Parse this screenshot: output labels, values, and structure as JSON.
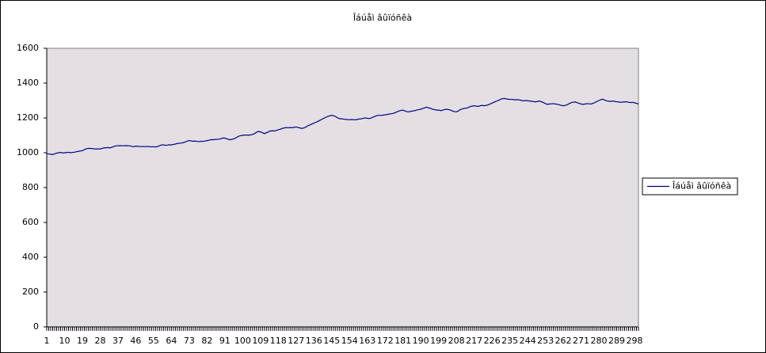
{
  "chart_data": {
    "type": "line",
    "title": "Îáúåì âûïóñêà",
    "categories": [
      1,
      null,
      null,
      null,
      null,
      null,
      null,
      null,
      null,
      10,
      null,
      null,
      null,
      null,
      null,
      null,
      null,
      null,
      19,
      null,
      null,
      null,
      null,
      null,
      null,
      null,
      null,
      28,
      null,
      null,
      null,
      null,
      null,
      null,
      null,
      null,
      37,
      null,
      null,
      null,
      null,
      null,
      null,
      null,
      null,
      46,
      null,
      null,
      null,
      null,
      null,
      null,
      null,
      null,
      55,
      null,
      null,
      null,
      null,
      null,
      null,
      null,
      null,
      64,
      null,
      null,
      null,
      null,
      null,
      null,
      null,
      null,
      73,
      null,
      null,
      null,
      null,
      null,
      null,
      null,
      null,
      82,
      null,
      null,
      null,
      null,
      null,
      null,
      null,
      null,
      91,
      null,
      null,
      null,
      null,
      null,
      null,
      null,
      null,
      100,
      null,
      null,
      null,
      null,
      null,
      null,
      null,
      null,
      109,
      null,
      null,
      null,
      null,
      null,
      null,
      null,
      null,
      118,
      null,
      null,
      null,
      null,
      null,
      null,
      null,
      null,
      127,
      null,
      null,
      null,
      null,
      null,
      null,
      null,
      null,
      136,
      null,
      null,
      null,
      null,
      null,
      null,
      null,
      null,
      145,
      null,
      null,
      null,
      null,
      null,
      null,
      null,
      null,
      154,
      null,
      null,
      null,
      null,
      null,
      null,
      null,
      null,
      163,
      null,
      null,
      null,
      null,
      null,
      null,
      null,
      null,
      172,
      null,
      null,
      null,
      null,
      null,
      null,
      null,
      null,
      181,
      null,
      null,
      null,
      null,
      null,
      null,
      null,
      null,
      190,
      null,
      null,
      null,
      null,
      null,
      null,
      null,
      null,
      199,
      null,
      null,
      null,
      null,
      null,
      null,
      null,
      null,
      208,
      null,
      null,
      null,
      null,
      null,
      null,
      null,
      null,
      217,
      null,
      null,
      null,
      null,
      null,
      null,
      null,
      null,
      226,
      null,
      null,
      null,
      null,
      null,
      null,
      null,
      null,
      235,
      null,
      null,
      null,
      null,
      null,
      null,
      null,
      null,
      244,
      null,
      null,
      null,
      null,
      null,
      null,
      null,
      null,
      253,
      null,
      null,
      null,
      null,
      null,
      null,
      null,
      null,
      262,
      null,
      null,
      null,
      null,
      null,
      null,
      null,
      null,
      271,
      null,
      null,
      null,
      null,
      null,
      null,
      null,
      null,
      280,
      null,
      null,
      null,
      null,
      null,
      null,
      null,
      null,
      289,
      null,
      null,
      null,
      null,
      null,
      null,
      null,
      null,
      298,
      null,
      null
    ],
    "series": [
      {
        "name": "Îáúåì âûïóñêà",
        "color": "#000080",
        "values": [
          995,
          993,
          992,
          990,
          994,
          998,
          1000,
          1002,
          999,
          1000,
          1001,
          1003,
          1000,
          1002,
          1003,
          1006,
          1008,
          1010,
          1012,
          1018,
          1023,
          1025,
          1025,
          1024,
          1022,
          1021,
          1022,
          1022,
          1025,
          1028,
          1029,
          1030,
          1028,
          1032,
          1036,
          1040,
          1040,
          1041,
          1040,
          1040,
          1041,
          1040,
          1040,
          1036,
          1035,
          1038,
          1037,
          1036,
          1035,
          1036,
          1035,
          1036,
          1035,
          1034,
          1035,
          1033,
          1036,
          1040,
          1045,
          1045,
          1043,
          1044,
          1046,
          1045,
          1048,
          1050,
          1053,
          1055,
          1056,
          1058,
          1062,
          1067,
          1070,
          1068,
          1066,
          1067,
          1065,
          1064,
          1066,
          1065,
          1068,
          1070,
          1072,
          1075,
          1075,
          1076,
          1077,
          1078,
          1080,
          1085,
          1084,
          1080,
          1076,
          1075,
          1078,
          1082,
          1088,
          1095,
          1098,
          1100,
          1101,
          1102,
          1100,
          1103,
          1105,
          1110,
          1118,
          1122,
          1120,
          1115,
          1110,
          1115,
          1120,
          1125,
          1126,
          1125,
          1128,
          1132,
          1135,
          1140,
          1142,
          1145,
          1143,
          1145,
          1144,
          1146,
          1148,
          1145,
          1142,
          1140,
          1143,
          1148,
          1155,
          1160,
          1165,
          1170,
          1175,
          1180,
          1186,
          1192,
          1198,
          1204,
          1208,
          1212,
          1215,
          1212,
          1208,
          1200,
          1196,
          1195,
          1193,
          1192,
          1190,
          1190,
          1191,
          1190,
          1189,
          1192,
          1194,
          1195,
          1198,
          1200,
          1198,
          1196,
          1200,
          1205,
          1210,
          1214,
          1215,
          1215,
          1216,
          1218,
          1220,
          1222,
          1224,
          1226,
          1230,
          1235,
          1240,
          1243,
          1245,
          1240,
          1236,
          1235,
          1238,
          1240,
          1242,
          1245,
          1248,
          1250,
          1255,
          1258,
          1262,
          1258,
          1255,
          1250,
          1248,
          1245,
          1245,
          1242,
          1244,
          1248,
          1250,
          1248,
          1245,
          1240,
          1236,
          1235,
          1240,
          1248,
          1252,
          1255,
          1256,
          1260,
          1265,
          1268,
          1270,
          1268,
          1266,
          1270,
          1272,
          1270,
          1272,
          1275,
          1280,
          1285,
          1290,
          1295,
          1300,
          1305,
          1310,
          1312,
          1310,
          1308,
          1306,
          1307,
          1305,
          1304,
          1305,
          1303,
          1300,
          1298,
          1300,
          1299,
          1297,
          1296,
          1294,
          1292,
          1295,
          1297,
          1293,
          1288,
          1282,
          1278,
          1280,
          1281,
          1282,
          1280,
          1278,
          1276,
          1272,
          1270,
          1272,
          1276,
          1282,
          1288,
          1290,
          1292,
          1288,
          1284,
          1280,
          1278,
          1280,
          1282,
          1281,
          1280,
          1284,
          1288,
          1295,
          1300,
          1305,
          1308,
          1302,
          1298,
          1296,
          1295,
          1297,
          1295,
          1293,
          1292,
          1290,
          1291,
          1292,
          1293,
          1290,
          1288,
          1290,
          1287,
          1284,
          1280
        ]
      }
    ],
    "ylim": [
      0,
      1600
    ],
    "yticks": [
      0,
      200,
      400,
      600,
      800,
      1000,
      1200,
      1400,
      1600
    ],
    "grid": false,
    "legend": "right",
    "plot_background": "#e3dfe3"
  }
}
